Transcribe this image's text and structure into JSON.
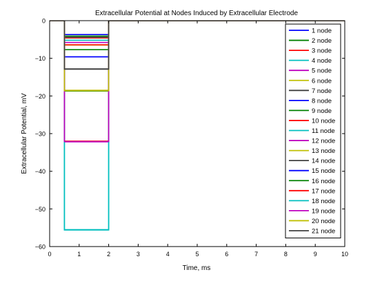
{
  "chart_data": {
    "type": "line",
    "title": "Extracellular Potential at Nodes Induced by Extracellular Electrode",
    "xlabel": "Time, ms",
    "ylabel": "Extracellular Potential, mV",
    "xlim": [
      0,
      10
    ],
    "ylim": [
      -60,
      0
    ],
    "x_ticks": [
      "0",
      "1",
      "2",
      "3",
      "4",
      "5",
      "6",
      "7",
      "8",
      "9",
      "10"
    ],
    "y_ticks": [
      "0",
      "−10",
      "−20",
      "−30",
      "−40",
      "−50",
      "−60"
    ],
    "grid": false,
    "legend_position": "right",
    "pulse": {
      "start": 0.5,
      "end": 2.0,
      "baseline": 0
    },
    "series": [
      {
        "name": "1 node",
        "color": "#0000ff",
        "level": -3.7
      },
      {
        "name": "2 node",
        "color": "#008000",
        "level": -4.1
      },
      {
        "name": "3 node",
        "color": "#ff0000",
        "level": -4.6
      },
      {
        "name": "4 node",
        "color": "#00bfbf",
        "level": -5.2
      },
      {
        "name": "5 node",
        "color": "#bf00bf",
        "level": -5.8
      },
      {
        "name": "6 node",
        "color": "#bfbf00",
        "level": -6.5
      },
      {
        "name": "7 node",
        "color": "#3f3f3f",
        "level": -4.4
      },
      {
        "name": "8 node",
        "color": "#0000ff",
        "level": -9.6
      },
      {
        "name": "9 node",
        "color": "#008000",
        "level": -7.7
      },
      {
        "name": "10 node",
        "color": "#ff0000",
        "level": -6.4
      },
      {
        "name": "11 node",
        "color": "#00bfbf",
        "level": -55.5
      },
      {
        "name": "12 node",
        "color": "#bf00bf",
        "level": -32.2
      },
      {
        "name": "13 node",
        "color": "#bfbf00",
        "level": -18.5
      },
      {
        "name": "14 node",
        "color": "#3f3f3f",
        "level": -12.8
      },
      {
        "name": "15 node",
        "color": "#0000ff",
        "level": -9.6
      },
      {
        "name": "16 node",
        "color": "#008000",
        "level": -18.7
      },
      {
        "name": "17 node",
        "color": "#ff0000",
        "level": -32.0
      },
      {
        "name": "18 node",
        "color": "#00bfbf",
        "level": -55.6
      },
      {
        "name": "19 node",
        "color": "#bf00bf",
        "level": -32.1
      },
      {
        "name": "20 node",
        "color": "#bfbf00",
        "level": -18.6
      },
      {
        "name": "21 node",
        "color": "#3f3f3f",
        "level": -12.9
      }
    ]
  }
}
